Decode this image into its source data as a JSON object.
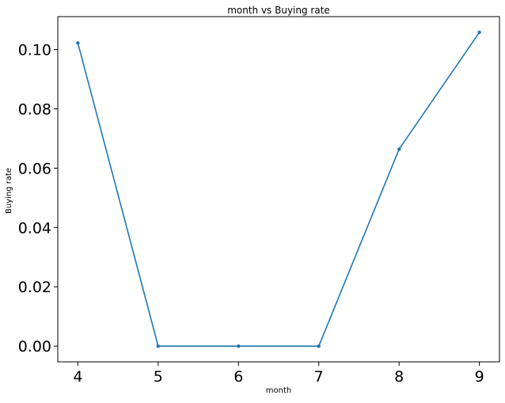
{
  "chart_data": {
    "type": "line",
    "title": "month vs Buying rate",
    "xlabel": "month",
    "ylabel": "Buying rate",
    "x": [
      4,
      5,
      6,
      7,
      8,
      9
    ],
    "series": [
      {
        "values": [
          0.1022,
          0.0,
          0.0,
          0.0,
          0.0664,
          0.1058
        ],
        "color": "#1f77b4",
        "marker": "circle"
      }
    ],
    "xlim": [
      3.75,
      9.25
    ],
    "ylim": [
      -0.0053,
      0.1111
    ],
    "xticks": [
      4,
      5,
      6,
      7,
      8,
      9
    ],
    "yticks": [
      0.0,
      0.02,
      0.04,
      0.06,
      0.08,
      0.1
    ],
    "xtick_labels": [
      "4",
      "5",
      "6",
      "7",
      "8",
      "9"
    ],
    "ytick_labels": [
      "0.00",
      "0.02",
      "0.04",
      "0.06",
      "0.08",
      "0.10"
    ],
    "grid": false,
    "legend": "none"
  }
}
